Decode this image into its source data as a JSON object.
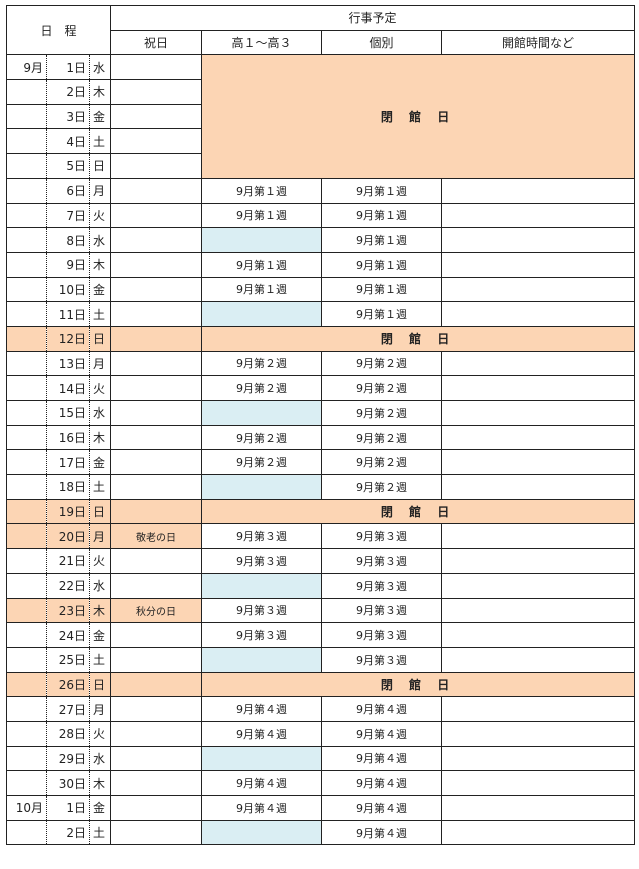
{
  "header": {
    "schedule": "日　程",
    "events": "行事予定",
    "cols": [
      "祝日",
      "高１～高３",
      "個別",
      "開館時間など"
    ]
  },
  "closed_label": "閉 館 日",
  "colors": {
    "closed": "#fcd5b4",
    "no_class": "#daeef3"
  },
  "rows": [
    {
      "month": "9月",
      "day": "1日",
      "wd": "水",
      "type": "closedblock"
    },
    {
      "month": "",
      "day": "2日",
      "wd": "木",
      "type": "closedblock"
    },
    {
      "month": "",
      "day": "3日",
      "wd": "金",
      "type": "closedblock"
    },
    {
      "month": "",
      "day": "4日",
      "wd": "土",
      "type": "closedblock"
    },
    {
      "month": "",
      "day": "5日",
      "wd": "日",
      "type": "closedblock"
    },
    {
      "month": "",
      "day": "6日",
      "wd": "月",
      "holiday": "",
      "grade": "9月第１週",
      "indiv": "9月第１週"
    },
    {
      "month": "",
      "day": "7日",
      "wd": "火",
      "holiday": "",
      "grade": "9月第１週",
      "indiv": "9月第１週"
    },
    {
      "month": "",
      "day": "8日",
      "wd": "水",
      "holiday": "",
      "grade": "",
      "indiv": "9月第１週"
    },
    {
      "month": "",
      "day": "9日",
      "wd": "木",
      "holiday": "",
      "grade": "9月第１週",
      "indiv": "9月第１週"
    },
    {
      "month": "",
      "day": "10日",
      "wd": "金",
      "holiday": "",
      "grade": "9月第１週",
      "indiv": "9月第１週"
    },
    {
      "month": "",
      "day": "11日",
      "wd": "土",
      "holiday": "",
      "grade": "",
      "indiv": "9月第１週"
    },
    {
      "month": "",
      "day": "12日",
      "wd": "日",
      "type": "closed"
    },
    {
      "month": "",
      "day": "13日",
      "wd": "月",
      "holiday": "",
      "grade": "9月第２週",
      "indiv": "9月第２週"
    },
    {
      "month": "",
      "day": "14日",
      "wd": "火",
      "holiday": "",
      "grade": "9月第２週",
      "indiv": "9月第２週"
    },
    {
      "month": "",
      "day": "15日",
      "wd": "水",
      "holiday": "",
      "grade": "",
      "indiv": "9月第２週"
    },
    {
      "month": "",
      "day": "16日",
      "wd": "木",
      "holiday": "",
      "grade": "9月第２週",
      "indiv": "9月第２週"
    },
    {
      "month": "",
      "day": "17日",
      "wd": "金",
      "holiday": "",
      "grade": "9月第２週",
      "indiv": "9月第２週"
    },
    {
      "month": "",
      "day": "18日",
      "wd": "土",
      "holiday": "",
      "grade": "",
      "indiv": "9月第２週"
    },
    {
      "month": "",
      "day": "19日",
      "wd": "日",
      "type": "closed"
    },
    {
      "month": "",
      "day": "20日",
      "wd": "月",
      "holiday": "敬老の日",
      "grade": "9月第３週",
      "indiv": "9月第３週"
    },
    {
      "month": "",
      "day": "21日",
      "wd": "火",
      "holiday": "",
      "grade": "9月第３週",
      "indiv": "9月第３週"
    },
    {
      "month": "",
      "day": "22日",
      "wd": "水",
      "holiday": "",
      "grade": "",
      "indiv": "9月第３週"
    },
    {
      "month": "",
      "day": "23日",
      "wd": "木",
      "holiday": "秋分の日",
      "grade": "9月第３週",
      "indiv": "9月第３週"
    },
    {
      "month": "",
      "day": "24日",
      "wd": "金",
      "holiday": "",
      "grade": "9月第３週",
      "indiv": "9月第３週"
    },
    {
      "month": "",
      "day": "25日",
      "wd": "土",
      "holiday": "",
      "grade": "",
      "indiv": "9月第３週"
    },
    {
      "month": "",
      "day": "26日",
      "wd": "日",
      "type": "closed"
    },
    {
      "month": "",
      "day": "27日",
      "wd": "月",
      "holiday": "",
      "grade": "9月第４週",
      "indiv": "9月第４週"
    },
    {
      "month": "",
      "day": "28日",
      "wd": "火",
      "holiday": "",
      "grade": "9月第４週",
      "indiv": "9月第４週"
    },
    {
      "month": "",
      "day": "29日",
      "wd": "水",
      "holiday": "",
      "grade": "",
      "indiv": "9月第４週"
    },
    {
      "month": "",
      "day": "30日",
      "wd": "木",
      "holiday": "",
      "grade": "9月第４週",
      "indiv": "9月第４週"
    },
    {
      "month": "10月",
      "day": "1日",
      "wd": "金",
      "holiday": "",
      "grade": "9月第４週",
      "indiv": "9月第４週"
    },
    {
      "month": "",
      "day": "2日",
      "wd": "土",
      "holiday": "",
      "grade": "",
      "indiv": "9月第４週"
    }
  ]
}
